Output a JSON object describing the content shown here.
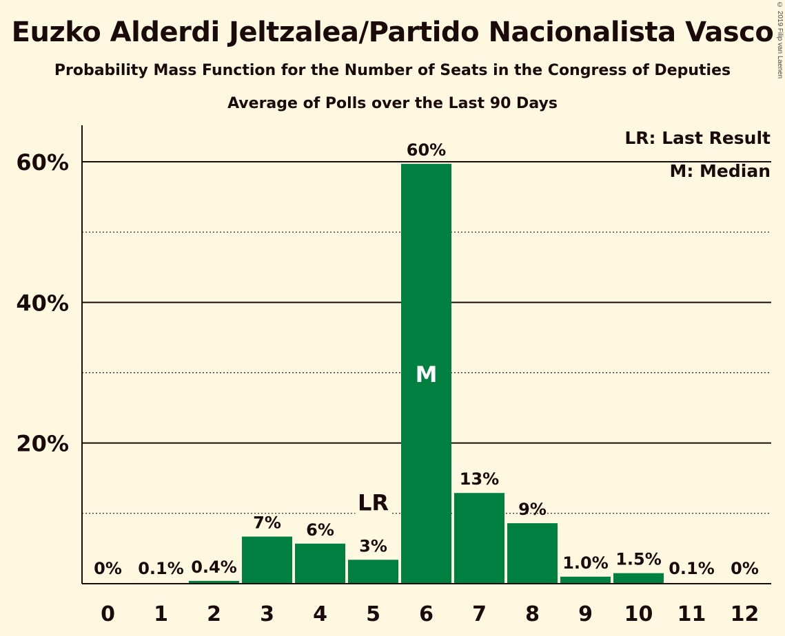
{
  "chart_data": {
    "type": "bar",
    "title": "Euzko Alderdi Jeltzalea/Partido Nacionalista Vasco",
    "subtitle": "Probability Mass Function for the Number of Seats in the Congress of Deputies",
    "subtitle2": "Average of Polls over the Last 90 Days",
    "copyright": "© 2019 Filip van Laenen",
    "categories": [
      "0",
      "1",
      "2",
      "3",
      "4",
      "5",
      "6",
      "7",
      "8",
      "9",
      "10",
      "11",
      "12"
    ],
    "values": [
      0,
      0.1,
      0.4,
      6.7,
      5.7,
      3.4,
      59.7,
      12.9,
      8.6,
      1.0,
      1.5,
      0.1,
      0
    ],
    "value_labels": [
      "0%",
      "0.1%",
      "0.4%",
      "7%",
      "6%",
      "3%",
      "60%",
      "13%",
      "9%",
      "1.0%",
      "1.5%",
      "0.1%",
      "0%"
    ],
    "ylim": [
      0,
      65
    ],
    "yticks": [
      20,
      40,
      60
    ],
    "ytick_labels": [
      "20%",
      "40%",
      "60%"
    ],
    "minor_gridlines": [
      10,
      30,
      50
    ],
    "last_result": {
      "category": "5",
      "label": "LR"
    },
    "median": {
      "category": "6",
      "label": "M"
    },
    "legend": [
      "LR: Last Result",
      "M: Median"
    ],
    "legend_position": "top-right",
    "bar_color": "#008040",
    "background_color": "#fff8e1",
    "xlabel": "",
    "ylabel": ""
  }
}
